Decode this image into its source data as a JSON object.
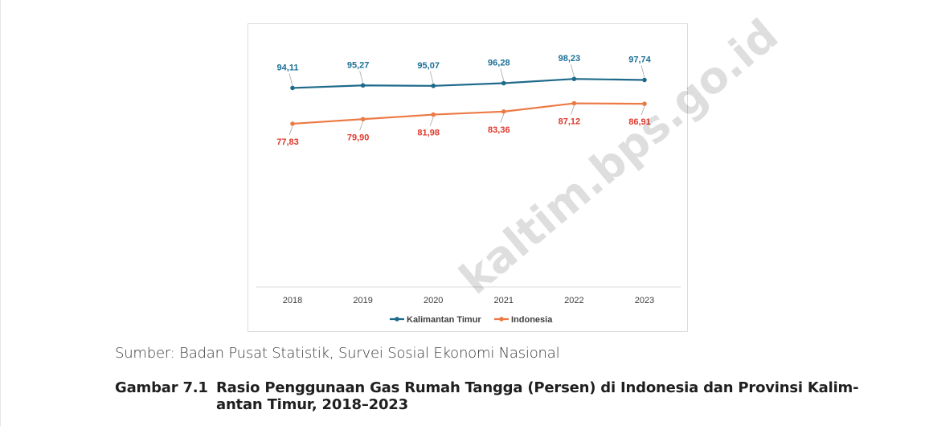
{
  "chart_data": {
    "type": "line",
    "categories": [
      "2018",
      "2019",
      "2020",
      "2021",
      "2022",
      "2023"
    ],
    "series": [
      {
        "name": "Kalimantan Timur",
        "color": "#1e6a8a",
        "label_color": "#1c7096",
        "values": [
          94.11,
          95.27,
          95.07,
          96.28,
          98.23,
          97.74
        ],
        "labels": [
          "94,11",
          "95,27",
          "95,07",
          "96,28",
          "98,23",
          "97,74"
        ]
      },
      {
        "name": "Indonesia",
        "color": "#ec7a45",
        "label_color": "#e0392b",
        "values": [
          77.83,
          79.9,
          81.98,
          83.36,
          87.12,
          86.91
        ],
        "labels": [
          "77,83",
          "79,90",
          "81,98",
          "83,36",
          "87,12",
          "86,91"
        ]
      }
    ],
    "legend": "bottom",
    "grid": false
  },
  "source_text": "Sumber: Badan Pusat Statistik, Survei Sosial Ekonomi Nasional",
  "caption": {
    "number": "Gambar 7.1",
    "line1": "Rasio Penggunaan Gas Rumah Tangga (Persen) di Indonesia dan Provinsi Kalim-",
    "line2": "antan Timur, 2018–2023"
  },
  "watermark": "kaltim.bps.go.id"
}
